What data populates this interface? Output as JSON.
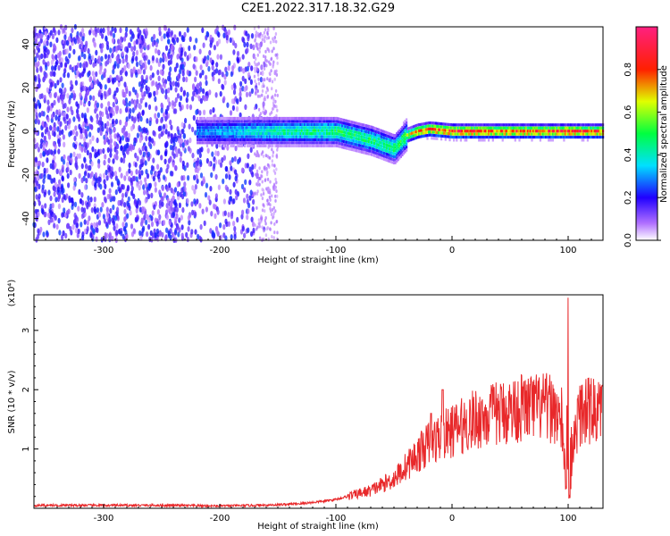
{
  "title": "C2E1.2022.317.18.32.G29",
  "colors": {
    "snr_line": "#e8282a",
    "axis": "#000000"
  },
  "chart_data": [
    {
      "type": "heatmap",
      "title": "C2E1.2022.317.18.32.G29",
      "xlabel": "Height of straight line (km)",
      "ylabel": "Frequency (Hz)",
      "xlim": [
        -360,
        130
      ],
      "ylim": [
        -50,
        48
      ],
      "x_ticks": [
        -300,
        -200,
        -100,
        0,
        100
      ],
      "y_ticks": [
        -40,
        -20,
        0,
        20,
        40
      ],
      "colorbar": {
        "label": "Normalized spectral amplitude",
        "range": [
          0.0,
          1.0
        ],
        "ticks": [
          "0.0",
          "0.2",
          "0.4",
          "0.6",
          "0.8"
        ],
        "colormap": "rainbow (white-violet-blue-cyan-green-yellow-red-pink)"
      },
      "description_points": {
        "line_x": [
          -200,
          -150,
          -100,
          -70,
          -50,
          -40,
          -30,
          -20,
          0,
          50,
          100,
          130
        ],
        "line_center_hz": [
          0,
          0,
          0,
          -4,
          -8,
          -2,
          0,
          1,
          0,
          0,
          0,
          0
        ],
        "peak_amplitude": [
          0.35,
          0.45,
          0.5,
          0.5,
          0.5,
          0.6,
          0.8,
          0.85,
          0.9,
          0.85,
          0.9,
          0.85
        ]
      }
    },
    {
      "type": "line",
      "xlabel": "Height of straight line (km)",
      "ylabel": "SNR (10 * v/v)",
      "y_multiplier": "(x10⁴)",
      "xlim": [
        -360,
        130
      ],
      "ylim": [
        0,
        3.6
      ],
      "x_ticks": [
        -300,
        -200,
        -100,
        0,
        100
      ],
      "y_ticks": [
        1,
        2,
        3
      ],
      "series": [
        {
          "x": [
            -360,
            -300,
            -250,
            -200,
            -170,
            -150,
            -130,
            -120,
            -110,
            -100,
            -90,
            -80,
            -70,
            -60,
            -50,
            -45,
            -40,
            -35,
            -30,
            -25,
            -20,
            -15,
            -10,
            -5,
            0,
            5,
            10,
            20,
            30,
            40,
            50,
            60,
            70,
            80,
            90,
            95,
            98,
            100,
            102,
            105,
            110,
            120,
            130
          ],
          "y": [
            0.05,
            0.05,
            0.05,
            0.04,
            0.05,
            0.06,
            0.08,
            0.1,
            0.12,
            0.15,
            0.2,
            0.25,
            0.3,
            0.4,
            0.5,
            0.6,
            0.7,
            0.8,
            0.9,
            1.0,
            1.1,
            1.15,
            1.2,
            1.25,
            1.3,
            1.35,
            1.4,
            1.5,
            1.55,
            1.6,
            1.65,
            1.7,
            1.7,
            1.7,
            1.65,
            1.3,
            0.4,
            0.1,
            0.3,
            1.2,
            1.6,
            1.65,
            1.6
          ]
        }
      ],
      "peaks": [
        {
          "x": 100,
          "y": 3.55
        },
        {
          "x": -8,
          "y": 2.0
        },
        {
          "x": -18,
          "y": 1.6
        }
      ]
    }
  ]
}
